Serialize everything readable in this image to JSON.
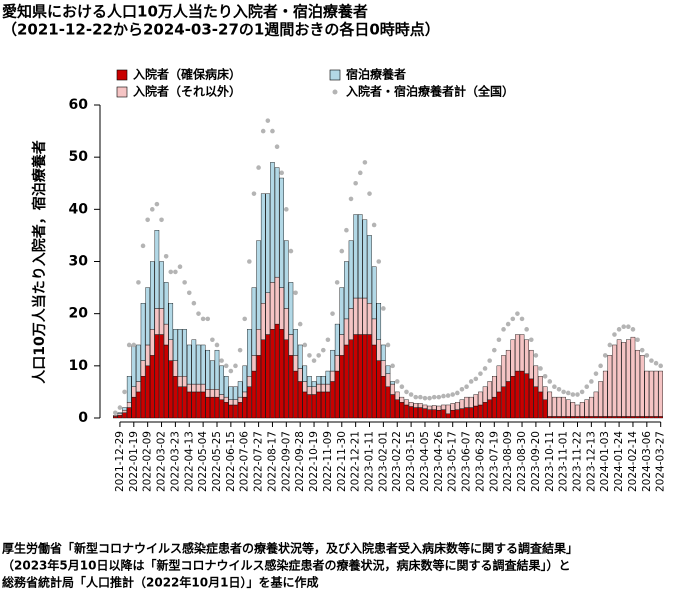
{
  "chart_data": {
    "type": "bar",
    "stacked": true,
    "title": "愛知県における人口10万人当たり入院者・宿泊療養者",
    "subtitle": "（2021-12-22から2024-03-27の1週間おきの各日0時時点）",
    "y_label": "人口10万人当たり入院者，宿泊療養者",
    "source": [
      "厚生労働省「新型コロナウイルス感染症患者の療養状況等，及び入院患者受入病床数等に関する調査結果」",
      "（2023年5月10日以降は「新型コロナウイルス感染症患者の療養状況，病床数等に関する調査結果」）と",
      "総務省統計局「人口推計（2022年10月1日）」を基に作成"
    ],
    "categories": [
      null,
      "2021-12-29",
      null,
      null,
      "2022-01-19",
      null,
      null,
      "2022-02-09",
      null,
      null,
      "2022-03-02",
      null,
      null,
      "2022-03-23",
      null,
      null,
      "2022-04-13",
      null,
      null,
      "2022-05-04",
      null,
      null,
      "2022-05-25",
      null,
      null,
      "2022-06-15",
      null,
      null,
      "2022-07-06",
      null,
      null,
      "2022-07-27",
      null,
      null,
      "2022-08-17",
      null,
      null,
      "2022-09-07",
      null,
      null,
      "2022-09-28",
      null,
      null,
      "2022-10-19",
      null,
      null,
      "2022-11-09",
      null,
      null,
      "2022-11-30",
      null,
      null,
      "2022-12-21",
      null,
      null,
      "2023-01-11",
      null,
      null,
      "2023-02-01",
      null,
      null,
      "2023-02-22",
      null,
      null,
      "2023-03-15",
      null,
      null,
      "2023-04-05",
      null,
      null,
      "2023-04-26",
      null,
      null,
      "2023-05-17",
      null,
      null,
      "2023-06-07",
      null,
      null,
      "2023-06-28",
      null,
      null,
      "2023-07-19",
      null,
      null,
      "2023-08-09",
      null,
      null,
      "2023-08-30",
      null,
      null,
      "2023-09-20",
      null,
      null,
      "2023-10-11",
      null,
      null,
      "2023-11-01",
      null,
      null,
      "2023-11-22",
      null,
      null,
      "2023-12-13",
      null,
      null,
      "2024-01-03",
      null,
      null,
      "2024-01-24",
      null,
      null,
      "2024-02-14",
      null,
      null,
      "2024-03-06",
      null,
      null,
      "2024-03-27"
    ],
    "series": [
      {
        "name": "入院者（確保病床）",
        "color": "#c80000",
        "values": [
          0.3,
          0.5,
          1,
          2,
          4,
          5,
          8,
          10,
          12,
          16,
          16,
          14,
          11,
          8,
          6,
          6,
          5,
          5,
          5,
          5,
          4,
          4,
          4,
          3.5,
          3,
          2.5,
          2.5,
          3,
          4,
          6,
          9,
          12,
          15,
          16,
          17,
          18,
          17,
          15,
          12,
          9,
          7,
          5,
          4.5,
          4.5,
          5,
          5,
          5,
          7,
          9,
          12,
          14,
          15,
          16,
          16,
          16,
          16,
          14,
          11,
          8,
          6,
          4.5,
          3.5,
          3,
          2.5,
          2.2,
          2,
          2,
          1.8,
          1.6,
          1.6,
          1.5,
          1.6,
          0.8,
          1.5,
          1.6,
          1.8,
          2,
          2,
          2.3,
          2.5,
          3,
          3.5,
          4,
          5,
          6,
          7,
          8,
          9,
          9,
          8.5,
          7.5,
          6,
          5,
          3.5,
          0.3,
          0.3,
          0.3,
          0.3,
          0.3,
          0.3,
          0.3,
          0.3,
          0.3,
          0.3,
          0.3,
          0.3,
          0.3,
          0.3,
          0.3,
          0.3,
          0.3,
          0.3,
          0.3,
          0.3,
          0.3,
          0.3,
          0.3,
          0.3,
          0.3
        ]
      },
      {
        "name": "入院者（それ以外）",
        "color": "#f5c4c4",
        "values": [
          0.2,
          0.3,
          0.5,
          1,
          2,
          2,
          3,
          4,
          5,
          5,
          5,
          4,
          4,
          3,
          2,
          2,
          1.5,
          1.5,
          1.5,
          1.5,
          1.5,
          1.5,
          1.5,
          1,
          1,
          1,
          1,
          1,
          1,
          2,
          3,
          5,
          7,
          8,
          9,
          9,
          8,
          6,
          4,
          3,
          2.5,
          2,
          1.5,
          1.5,
          1.5,
          1.5,
          1.5,
          2,
          3,
          4,
          5,
          6,
          7,
          7,
          7,
          6,
          5,
          4,
          3,
          2.5,
          2,
          1.5,
          1,
          1,
          0.8,
          0.8,
          0.8,
          0.7,
          0.7,
          0.8,
          0.8,
          0.9,
          1.7,
          1.3,
          1.4,
          1.7,
          2,
          2,
          2.2,
          2.5,
          3,
          3.5,
          4,
          5,
          6,
          6,
          7,
          7,
          7,
          6.5,
          5.5,
          4,
          3,
          2.5,
          4.7,
          3.7,
          3.7,
          3.7,
          3.2,
          2.7,
          2.2,
          2.7,
          3.2,
          3.7,
          4.7,
          6.7,
          8.7,
          11.7,
          13.7,
          14.7,
          14.2,
          14.7,
          15.2,
          12.7,
          11.7,
          8.7,
          8.7,
          8.7,
          8.7
        ]
      },
      {
        "name": "宿泊療養者",
        "color": "#b2d8e6",
        "values": [
          0,
          0.2,
          0.5,
          5,
          8,
          7,
          11,
          11,
          13,
          15,
          9,
          8,
          7,
          6,
          9,
          9,
          7.5,
          8.5,
          7.5,
          7.5,
          7.5,
          5.5,
          7.5,
          5.5,
          4,
          2.5,
          2.5,
          3,
          5,
          9,
          13,
          17,
          21,
          19,
          23,
          21,
          21,
          13,
          10,
          5,
          4.5,
          3,
          2,
          1,
          1.5,
          1.5,
          2.5,
          4,
          6,
          9,
          11,
          13,
          16,
          16,
          15,
          13,
          10,
          7,
          3,
          1.5,
          0.5,
          0,
          0,
          0,
          0,
          0,
          0,
          0,
          0,
          0,
          0,
          0,
          0,
          0,
          0,
          0,
          0,
          0,
          0,
          0,
          0,
          0,
          0,
          0,
          0,
          0,
          0,
          0,
          0,
          0,
          0,
          0,
          0,
          0,
          0,
          0,
          0,
          0,
          0,
          0,
          0,
          0,
          0,
          0,
          0,
          0,
          0,
          0,
          0,
          0,
          0,
          0,
          0,
          0,
          0,
          0,
          0,
          0,
          0
        ]
      },
      {
        "name": "入院者・宿泊療養者計（全国）",
        "type": "scatter",
        "color": "#b4b4b4",
        "values": [
          1,
          2,
          5,
          14,
          14,
          26,
          33,
          38,
          40,
          41,
          38,
          31,
          28,
          28,
          29,
          26,
          24,
          22,
          20,
          19,
          19,
          15,
          14,
          11,
          10,
          9,
          10,
          13,
          19,
          30,
          43,
          48,
          55,
          57,
          55,
          52,
          47,
          40,
          32,
          24,
          18,
          14,
          12,
          11,
          12,
          13,
          15,
          20,
          26,
          32,
          36,
          42,
          45,
          47,
          49,
          43,
          37,
          30,
          21,
          14,
          10,
          7,
          6,
          5,
          4.5,
          4,
          4,
          3.8,
          3.8,
          4,
          4,
          4.2,
          4.3,
          4.5,
          4.8,
          5.5,
          6,
          7,
          7.5,
          8.5,
          9.5,
          11,
          13,
          15,
          17,
          18,
          19,
          20,
          19,
          17,
          15,
          12,
          9.5,
          8,
          7,
          6,
          5.5,
          5,
          4.8,
          4.5,
          4.5,
          5,
          6,
          7,
          8.5,
          10,
          12,
          14,
          16,
          17,
          17.5,
          17.5,
          17,
          15,
          13,
          12,
          11,
          10.5,
          10
        ]
      }
    ],
    "ylim": [
      0,
      60
    ],
    "yticks": [
      0,
      10,
      20,
      30,
      40,
      50,
      60
    ]
  }
}
